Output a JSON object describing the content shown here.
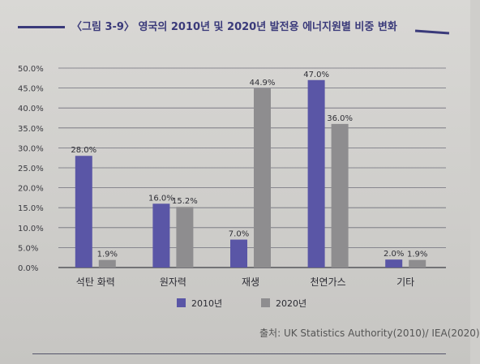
{
  "figure_title": "〈그림 3-9〉 영국의 2010년 및 2020년 발전용 에너지원별 비중 변화",
  "source": "출처: UK Statistics Authority(2010)/ IEA(2020)",
  "colors": {
    "2010": "#5a56a6",
    "2020": "#8e8d8f",
    "title": "#3a3a7a"
  },
  "chart_data": {
    "type": "bar",
    "title": "〈그림 3-9〉 영국의 2010년 및 2020년 발전용 에너지원별 비중 변화",
    "categories": [
      "석탄 화력",
      "원자력",
      "재생",
      "천연가스",
      "기타"
    ],
    "series": [
      {
        "name": "2010년",
        "values": [
          28.0,
          16.0,
          7.0,
          47.0,
          2.0
        ],
        "labels": [
          "28.0%",
          "16.0%",
          "7.0%",
          "47.0%",
          "2.0%"
        ]
      },
      {
        "name": "2020년",
        "values": [
          1.9,
          15.2,
          44.9,
          36.0,
          1.9
        ],
        "labels": [
          "1.9%",
          "15.2%",
          "44.9%",
          "36.0%",
          "1.9%"
        ]
      }
    ],
    "yticks": [
      "0.0%",
      "5.0%",
      "10.0%",
      "15.0%",
      "20.0%",
      "25.0%",
      "30.0%",
      "35.0%",
      "40.0%",
      "45.0%",
      "50.0%"
    ],
    "ylim": [
      0,
      50
    ],
    "xlabel": "",
    "ylabel": "",
    "grid": true,
    "legend": "bottom-center"
  }
}
